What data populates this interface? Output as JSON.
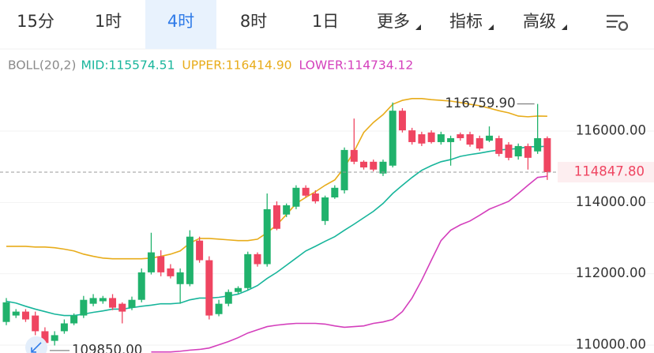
{
  "tabs": {
    "items": [
      "15分",
      "1时",
      "4时",
      "8时",
      "1日",
      "更多",
      "指标",
      "高级"
    ],
    "selected": 2,
    "dropdowns": [
      5,
      6,
      7
    ]
  },
  "chart_data": {
    "type": "candlestick",
    "indicator": "BOLL(20,2)",
    "up_color": "#20b26c",
    "down_color": "#ef4561",
    "candles": {
      "open": [
        110650,
        110830,
        110940,
        110830,
        110390,
        110120,
        110390,
        110610,
        110830,
        111160,
        111230,
        111320,
        111160,
        111050,
        111270,
        112040,
        112490,
        112150,
        111710,
        111710,
        112930,
        112380,
        110870,
        111160,
        111490,
        111600,
        112550,
        112270,
        113920,
        113660,
        113880,
        114410,
        114250,
        113480,
        114140,
        114340,
        115470,
        115140,
        115140,
        114810,
        115030,
        116570,
        116020,
        115910,
        115960,
        115690,
        115690,
        115910,
        115910,
        115800,
        115730,
        115800,
        115620,
        115290,
        115580,
        115430,
        115800
      ],
      "high": [
        111320,
        111010,
        111010,
        110940,
        110500,
        110390,
        110720,
        110890,
        111380,
        111430,
        111380,
        111430,
        111200,
        111360,
        112150,
        113150,
        112660,
        112270,
        112150,
        113220,
        113040,
        112490,
        111270,
        111560,
        111650,
        112620,
        112600,
        114250,
        114030,
        113970,
        114480,
        114480,
        114340,
        114190,
        114480,
        115540,
        116350,
        115180,
        115200,
        115200,
        116800,
        116640,
        116090,
        115980,
        116020,
        115980,
        115870,
        115960,
        115980,
        115870,
        116130,
        115870,
        115690,
        115650,
        115650,
        116759.9,
        115850
      ],
      "low": [
        110560,
        110760,
        110650,
        110280,
        109850,
        109990,
        110320,
        110560,
        110760,
        111090,
        111160,
        110980,
        110610,
        110980,
        111200,
        111980,
        111930,
        111870,
        111160,
        111650,
        112310,
        110720,
        110810,
        111090,
        111430,
        111540,
        112200,
        112200,
        113220,
        113590,
        113810,
        114140,
        113970,
        113370,
        114100,
        114250,
        115070,
        114920,
        114870,
        114740,
        114980,
        115960,
        115620,
        115580,
        115650,
        115620,
        115030,
        115730,
        115560,
        115450,
        115690,
        115290,
        115180,
        115200,
        114920,
        115360,
        114630
      ],
      "close": [
        111200,
        110940,
        110720,
        110390,
        110060,
        110280,
        110610,
        110830,
        111270,
        111320,
        111320,
        111050,
        110940,
        111270,
        112040,
        112600,
        112040,
        111930,
        112040,
        113040,
        112380,
        110830,
        111160,
        111490,
        111600,
        112550,
        112270,
        113810,
        113260,
        113920,
        114410,
        114190,
        114030,
        114140,
        114410,
        115470,
        115140,
        114980,
        114920,
        115140,
        116570,
        116020,
        115690,
        115650,
        115690,
        115910,
        115800,
        115800,
        115620,
        115510,
        115870,
        115360,
        115250,
        115580,
        115250,
        115800,
        114847.8
      ]
    },
    "series": [
      {
        "name": "MID",
        "label": "MID:115574.51",
        "color": "#17b59b",
        "values": [
          111230,
          111180,
          111090,
          111010,
          110940,
          110870,
          110830,
          110830,
          110870,
          110920,
          110960,
          111010,
          111010,
          111050,
          111090,
          111120,
          111160,
          111160,
          111180,
          111270,
          111320,
          111320,
          111340,
          111380,
          111430,
          111540,
          111670,
          111870,
          112040,
          112240,
          112440,
          112640,
          112770,
          112910,
          113040,
          113220,
          113390,
          113570,
          113750,
          113970,
          114250,
          114480,
          114700,
          114900,
          115030,
          115140,
          115200,
          115290,
          115340,
          115380,
          115430,
          115470,
          115490,
          115510,
          115560,
          115560,
          115574.51
        ]
      },
      {
        "name": "UPPER",
        "label": "UPPER:116414.90",
        "color": "#e8ac1a",
        "values": [
          112770,
          112770,
          112770,
          112750,
          112750,
          112730,
          112690,
          112640,
          112550,
          112490,
          112440,
          112420,
          112420,
          112420,
          112420,
          112440,
          112490,
          112550,
          112640,
          112860,
          112990,
          112990,
          112970,
          112950,
          112930,
          112930,
          112970,
          113150,
          113370,
          113660,
          113970,
          114140,
          114300,
          114480,
          114630,
          114980,
          115430,
          115960,
          116240,
          116460,
          116750,
          116860,
          116910,
          116910,
          116880,
          116860,
          116840,
          116800,
          116750,
          116710,
          116640,
          116570,
          116510,
          116420,
          116400,
          116420,
          116414.9
        ]
      },
      {
        "name": "LOWER",
        "label": "LOWER:114734.12",
        "color": "#d43fbc",
        "values": [
          null,
          null,
          null,
          null,
          null,
          null,
          null,
          null,
          null,
          null,
          null,
          null,
          null,
          null,
          null,
          109810,
          109810,
          109810,
          109830,
          109860,
          109880,
          109920,
          110010,
          110100,
          110210,
          110340,
          110430,
          110520,
          110560,
          110590,
          110610,
          110610,
          110610,
          110590,
          110540,
          110500,
          110520,
          110540,
          110610,
          110650,
          110720,
          110940,
          111320,
          111820,
          112380,
          112930,
          113220,
          113370,
          113480,
          113640,
          113810,
          113920,
          114030,
          114250,
          114480,
          114700,
          114734.12
        ]
      }
    ],
    "ylim": [
      109780,
      117570
    ],
    "yticks": [
      {
        "value": 116000,
        "label": "116000.00"
      },
      {
        "value": 114000,
        "label": "114000.00"
      },
      {
        "value": 112000,
        "label": "112000.00"
      },
      {
        "value": 110000,
        "label": "110000.00"
      }
    ],
    "grid": true,
    "current_price": {
      "value": 114847.8,
      "label": "114847.80",
      "color": "#ef4561"
    },
    "annotations": [
      {
        "value": 116759.9,
        "label": "116759.90",
        "index": 55
      },
      {
        "value": 109850,
        "label": "109850.00",
        "index": 4
      }
    ]
  }
}
